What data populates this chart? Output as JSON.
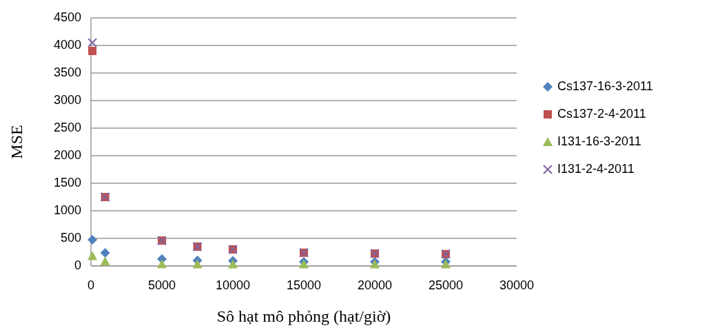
{
  "chart_data": {
    "type": "scatter",
    "xlabel": "Sô hạt mô phỏng (hạt/giờ)",
    "ylabel": "MSE",
    "x": [
      100,
      1000,
      5000,
      7500,
      10000,
      15000,
      20000,
      25000
    ],
    "xlim": [
      0,
      30000
    ],
    "xticks": [
      0,
      5000,
      10000,
      15000,
      20000,
      25000,
      30000
    ],
    "ylim": [
      0,
      4500
    ],
    "yticks": [
      0,
      500,
      1000,
      1500,
      2000,
      2500,
      3000,
      3500,
      4000,
      4500
    ],
    "grid": "y",
    "legend": "right",
    "series": [
      {
        "name": "Cs137-16-3-2011",
        "color": "#4f81bd",
        "marker": "diamond",
        "values": [
          475,
          237,
          125,
          100,
          95,
          75,
          75,
          75
        ]
      },
      {
        "name": "Cs137-2-4-2011",
        "color": "#c0504d",
        "marker": "square",
        "values": [
          3900,
          1250,
          460,
          350,
          300,
          240,
          225,
          215
        ]
      },
      {
        "name": "I131-16-3-2011",
        "color": "#9bbb59",
        "marker": "triangle",
        "values": [
          180,
          85,
          35,
          30,
          30,
          30,
          30,
          30
        ]
      },
      {
        "name": "I131-2-4-2011",
        "color": "#8064a2",
        "marker": "cross",
        "values": [
          4050,
          1250,
          460,
          350,
          300,
          240,
          225,
          215
        ]
      }
    ]
  }
}
